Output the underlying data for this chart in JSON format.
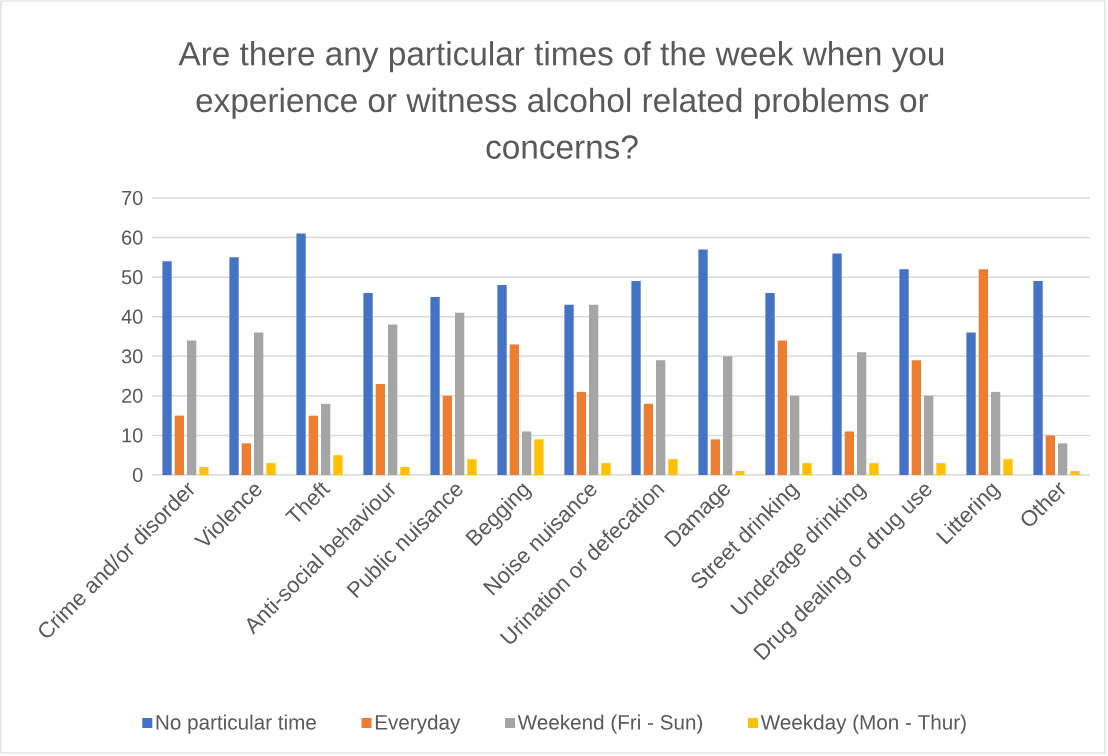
{
  "chart_data": {
    "type": "bar",
    "title": "Are there any particular times of the week when you experience or witness alcohol related problems or concerns?",
    "categories": [
      "Crime and/or disorder",
      "Violence",
      "Theft",
      "Anti-social behaviour",
      "Public nuisance",
      "Begging",
      "Noise nuisance",
      "Urination or defecation",
      "Damage",
      "Street drinking",
      "Underage drinking",
      "Drug dealing or drug use",
      "Littering",
      "Other"
    ],
    "series": [
      {
        "name": "No particular time",
        "color": "#4472c4",
        "values": [
          54,
          55,
          61,
          46,
          45,
          48,
          43,
          49,
          57,
          46,
          56,
          52,
          36,
          49
        ]
      },
      {
        "name": "Everyday",
        "color": "#ed7d31",
        "values": [
          15,
          8,
          15,
          23,
          20,
          33,
          21,
          18,
          9,
          34,
          11,
          29,
          52,
          10
        ]
      },
      {
        "name": "Weekend (Fri - Sun)",
        "color": "#a5a5a5",
        "values": [
          34,
          36,
          18,
          38,
          41,
          11,
          43,
          29,
          30,
          20,
          31,
          20,
          21,
          8
        ]
      },
      {
        "name": "Weekday (Mon - Thur)",
        "color": "#ffc000",
        "values": [
          2,
          3,
          5,
          2,
          4,
          9,
          3,
          4,
          1,
          3,
          3,
          3,
          4,
          1
        ]
      }
    ],
    "ylim": [
      0,
      70
    ],
    "yticks": [
      0,
      10,
      20,
      30,
      40,
      50,
      60,
      70
    ],
    "grid": "y",
    "legend": "bottom"
  }
}
